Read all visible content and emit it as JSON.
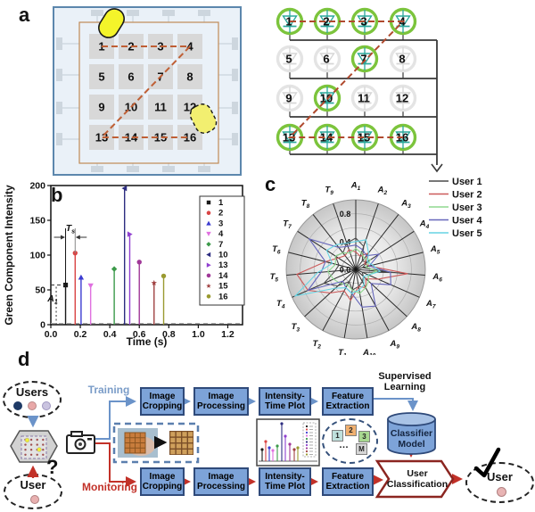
{
  "figure": {
    "labels": {
      "a": "a",
      "b": "b",
      "c": "c",
      "d": "d"
    }
  },
  "panel_a": {
    "chip_numbers": [
      "1",
      "2",
      "3",
      "4",
      "5",
      "6",
      "7",
      "8",
      "9",
      "10",
      "11",
      "12",
      "13",
      "14",
      "15",
      "16"
    ],
    "touch_path_color": "#bf5f35",
    "circuit": {
      "numbers": [
        "1",
        "2",
        "3",
        "4",
        "5",
        "6",
        "7",
        "8",
        "9",
        "10",
        "11",
        "12",
        "13",
        "14",
        "15",
        "16"
      ],
      "active": [
        1,
        2,
        3,
        4,
        7,
        10,
        13,
        14,
        15,
        16
      ],
      "active_ring_color": "#7cc43c",
      "inactive_ring_color": "#e4e4e4",
      "led_symbol_color": "#2ba89c",
      "inactive_symbol_color": "#d6d6d6",
      "trace_color": "#b04a2e",
      "wire_color": "#3a3a3a"
    }
  },
  "chart_data": [
    {
      "type": "stem",
      "panel": "b",
      "xlabel": "Time (s)",
      "ylabel": "Green Component Intensity",
      "xlim": [
        0.0,
        1.3
      ],
      "ylim": [
        0,
        200
      ],
      "xticks": [
        "0.0",
        "0.2",
        "0.4",
        "0.6",
        "0.8",
        "1.0",
        "1.2"
      ],
      "yticks": [
        "0",
        "50",
        "100",
        "150",
        "200"
      ],
      "grid": false,
      "legend_position": "upper right",
      "series": [
        {
          "name": "1",
          "x": 0.1,
          "y": 57,
          "color": "#1a1a1a",
          "marker": "square"
        },
        {
          "name": "2",
          "x": 0.165,
          "y": 103,
          "color": "#d94545",
          "marker": "circle"
        },
        {
          "name": "3",
          "x": 0.205,
          "y": 68,
          "color": "#3b3bd0",
          "marker": "triangle-up"
        },
        {
          "name": "4",
          "x": 0.27,
          "y": 56,
          "color": "#e070e0",
          "marker": "triangle-down"
        },
        {
          "name": "7",
          "x": 0.43,
          "y": 80,
          "color": "#3c9a4a",
          "marker": "diamond"
        },
        {
          "name": "10",
          "x": 0.5,
          "y": 196,
          "color": "#2c2c80",
          "marker": "triangle-left"
        },
        {
          "name": "13",
          "x": 0.535,
          "y": 130,
          "color": "#9040d0",
          "marker": "triangle-right"
        },
        {
          "name": "14",
          "x": 0.6,
          "y": 90,
          "color": "#a03898",
          "marker": "circle"
        },
        {
          "name": "15",
          "x": 0.7,
          "y": 60,
          "color": "#a04040",
          "marker": "star"
        },
        {
          "name": "16",
          "x": 0.765,
          "y": 70,
          "color": "#9a9a30",
          "marker": "circle"
        }
      ],
      "annotations": {
        "sampling_interval": {
          "base": "T",
          "sub": "s"
        },
        "amplitude": {
          "base": "A",
          "sub": "1"
        }
      }
    },
    {
      "type": "radar",
      "panel": "c",
      "rmax": 1.0,
      "rticks": [
        "0.0",
        "0.4",
        "0.8"
      ],
      "axes": [
        "A1",
        "A2",
        "A3",
        "A4",
        "A5",
        "A6",
        "A7",
        "A8",
        "A9",
        "A10",
        "T1",
        "T2",
        "T3",
        "T4",
        "T5",
        "T6",
        "T7",
        "T8",
        "T9"
      ],
      "legend_position": "top right",
      "series": [
        {
          "name": "User 1",
          "color": "#4a4a4a",
          "values": [
            0.45,
            0.35,
            0.15,
            0.2,
            0.1,
            0.55,
            0.1,
            0.15,
            0.2,
            0.25,
            0.3,
            0.2,
            0.35,
            0.5,
            0.3,
            0.25,
            0.35,
            0.3,
            0.4
          ]
        },
        {
          "name": "User 2",
          "color": "#cc5a5a",
          "values": [
            0.25,
            0.2,
            0.3,
            0.15,
            0.2,
            0.75,
            0.35,
            0.2,
            0.3,
            0.25,
            0.45,
            0.35,
            0.5,
            0.75,
            0.85,
            0.45,
            0.3,
            0.25,
            0.3
          ]
        },
        {
          "name": "User 3",
          "color": "#8fd88f",
          "values": [
            0.3,
            0.25,
            0.2,
            0.25,
            0.15,
            0.3,
            0.2,
            0.25,
            0.3,
            0.35,
            0.3,
            0.25,
            0.3,
            0.35,
            0.4,
            0.3,
            0.35,
            0.3,
            0.25
          ]
        },
        {
          "name": "User 4",
          "color": "#6666bb",
          "values": [
            0.35,
            0.3,
            0.25,
            0.4,
            0.2,
            0.5,
            0.55,
            0.3,
            0.6,
            0.55,
            0.35,
            0.3,
            0.25,
            0.75,
            0.5,
            0.45,
            0.8,
            0.4,
            0.35
          ]
        },
        {
          "name": "User 5",
          "color": "#66d4e4",
          "values": [
            0.4,
            0.45,
            0.3,
            0.2,
            0.25,
            0.35,
            0.2,
            0.15,
            0.25,
            0.3,
            0.35,
            0.3,
            0.4,
            0.95,
            0.55,
            0.35,
            0.5,
            0.45,
            0.4
          ]
        }
      ]
    }
  ],
  "panel_d": {
    "training_label": "Training",
    "monitoring_label": "Monitoring",
    "training_color": "#7a9cc8",
    "monitoring_color": "#c23128",
    "steps": [
      "Image Cropping",
      "Image Processing",
      "Intensity-Time Plot",
      "Feature Extraction"
    ],
    "supervised_learning_label": "Supervised Learning",
    "classifier_model_label": "Classifier Model",
    "user_classification_label": "User Classification",
    "users_group_label": "Users",
    "unknown_user_label": "User",
    "question_mark": "?",
    "identified_user_label": "User",
    "feature_tags": [
      "1",
      "2",
      "3",
      "…",
      "M"
    ],
    "box_fill": "#7da3d8",
    "box_border": "#2f4a7a"
  }
}
